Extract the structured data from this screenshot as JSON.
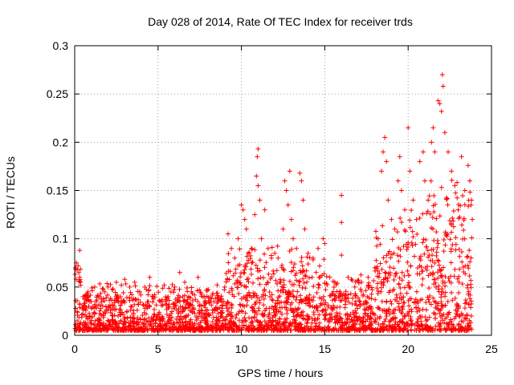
{
  "chart_data": {
    "type": "scatter",
    "title": "Day 028 of 2014, Rate Of TEC Index for receiver trds",
    "xlabel": "GPS time / hours",
    "ylabel": "ROTI / TECUs",
    "xlim": [
      0,
      25
    ],
    "ylim": [
      0,
      0.3
    ],
    "x_ticks": [
      0,
      5,
      10,
      15,
      20,
      25
    ],
    "y_ticks": [
      0,
      0.05,
      0.1,
      0.15,
      0.2,
      0.25,
      0.3
    ],
    "x_tick_labels": [
      "0",
      "5",
      "10",
      "15",
      "20",
      "25"
    ],
    "y_tick_labels": [
      "0",
      "0.05",
      "0.1",
      "0.15",
      "0.2",
      "0.25",
      "0.3"
    ],
    "grid": true,
    "marker": "+",
    "color": "#ff0000",
    "series": [
      {
        "name": "ROTI",
        "points": [
          [
            0.05,
            0.07
          ],
          [
            0.1,
            0.075
          ],
          [
            0.15,
            0.068
          ],
          [
            0.2,
            0.072
          ],
          [
            0.25,
            0.065
          ],
          [
            0.3,
            0.088
          ],
          [
            0.3,
            0.06
          ],
          [
            0.35,
            0.055
          ],
          [
            0.5,
            0.04
          ],
          [
            0.8,
            0.045
          ],
          [
            1.0,
            0.035
          ],
          [
            1.2,
            0.05
          ],
          [
            1.5,
            0.04
          ],
          [
            1.8,
            0.045
          ],
          [
            2.0,
            0.05
          ],
          [
            2.3,
            0.048
          ],
          [
            2.5,
            0.055
          ],
          [
            2.8,
            0.052
          ],
          [
            3.0,
            0.058
          ],
          [
            3.3,
            0.05
          ],
          [
            3.6,
            0.055
          ],
          [
            3.9,
            0.045
          ],
          [
            4.2,
            0.05
          ],
          [
            4.5,
            0.06
          ],
          [
            4.8,
            0.042
          ],
          [
            5.2,
            0.035
          ],
          [
            5.6,
            0.04
          ],
          [
            6.0,
            0.05
          ],
          [
            6.3,
            0.065
          ],
          [
            6.6,
            0.055
          ],
          [
            7.0,
            0.045
          ],
          [
            7.4,
            0.06
          ],
          [
            7.8,
            0.04
          ],
          [
            8.2,
            0.038
          ],
          [
            8.6,
            0.035
          ],
          [
            9.0,
            0.05
          ],
          [
            9.2,
            0.105
          ],
          [
            9.4,
            0.09
          ],
          [
            9.6,
            0.08
          ],
          [
            9.8,
            0.1
          ],
          [
            10.0,
            0.135
          ],
          [
            10.1,
            0.13
          ],
          [
            10.2,
            0.12
          ],
          [
            10.3,
            0.11
          ],
          [
            10.4,
            0.085
          ],
          [
            10.6,
            0.09
          ],
          [
            10.8,
            0.125
          ],
          [
            10.9,
            0.165
          ],
          [
            10.95,
            0.185
          ],
          [
            11.0,
            0.193
          ],
          [
            11.0,
            0.155
          ],
          [
            11.1,
            0.14
          ],
          [
            11.2,
            0.1
          ],
          [
            11.4,
            0.13
          ],
          [
            11.6,
            0.09
          ],
          [
            11.8,
            0.08
          ],
          [
            12.0,
            0.085
          ],
          [
            12.2,
            0.08
          ],
          [
            12.5,
            0.11
          ],
          [
            12.6,
            0.16
          ],
          [
            12.7,
            0.15
          ],
          [
            12.8,
            0.135
          ],
          [
            12.9,
            0.17
          ],
          [
            13.0,
            0.12
          ],
          [
            13.1,
            0.1
          ],
          [
            13.3,
            0.09
          ],
          [
            13.5,
            0.168
          ],
          [
            13.6,
            0.16
          ],
          [
            13.7,
            0.14
          ],
          [
            13.8,
            0.11
          ],
          [
            14.0,
            0.085
          ],
          [
            14.3,
            0.08
          ],
          [
            14.6,
            0.09
          ],
          [
            14.9,
            0.1
          ],
          [
            15.0,
            0.095
          ],
          [
            15.3,
            0.06
          ],
          [
            15.6,
            0.055
          ],
          [
            16.0,
            0.145
          ],
          [
            16.0,
            0.117
          ],
          [
            16.0,
            0.083
          ],
          [
            16.4,
            0.06
          ],
          [
            16.8,
            0.05
          ],
          [
            17.2,
            0.055
          ],
          [
            17.6,
            0.06
          ],
          [
            18.0,
            0.07
          ],
          [
            18.2,
            0.1
          ],
          [
            18.4,
            0.17
          ],
          [
            18.5,
            0.19
          ],
          [
            18.6,
            0.205
          ],
          [
            18.7,
            0.18
          ],
          [
            18.8,
            0.14
          ],
          [
            19.0,
            0.12
          ],
          [
            19.2,
            0.11
          ],
          [
            19.4,
            0.16
          ],
          [
            19.5,
            0.185
          ],
          [
            19.6,
            0.15
          ],
          [
            19.8,
            0.13
          ],
          [
            20.0,
            0.215
          ],
          [
            20.1,
            0.17
          ],
          [
            20.3,
            0.14
          ],
          [
            20.5,
            0.12
          ],
          [
            20.7,
            0.18
          ],
          [
            20.9,
            0.19
          ],
          [
            21.0,
            0.16
          ],
          [
            21.2,
            0.14
          ],
          [
            21.4,
            0.2
          ],
          [
            21.5,
            0.215
          ],
          [
            21.6,
            0.19
          ],
          [
            21.8,
            0.243
          ],
          [
            21.9,
            0.24
          ],
          [
            22.0,
            0.232
          ],
          [
            22.05,
            0.27
          ],
          [
            22.1,
            0.258
          ],
          [
            22.2,
            0.21
          ],
          [
            22.4,
            0.19
          ],
          [
            22.6,
            0.17
          ],
          [
            22.8,
            0.155
          ],
          [
            23.0,
            0.13
          ],
          [
            23.2,
            0.185
          ],
          [
            23.4,
            0.15
          ],
          [
            23.6,
            0.176
          ],
          [
            23.7,
            0.16
          ],
          [
            23.8,
            0.14
          ],
          [
            23.85,
            0.12
          ]
        ]
      }
    ]
  }
}
